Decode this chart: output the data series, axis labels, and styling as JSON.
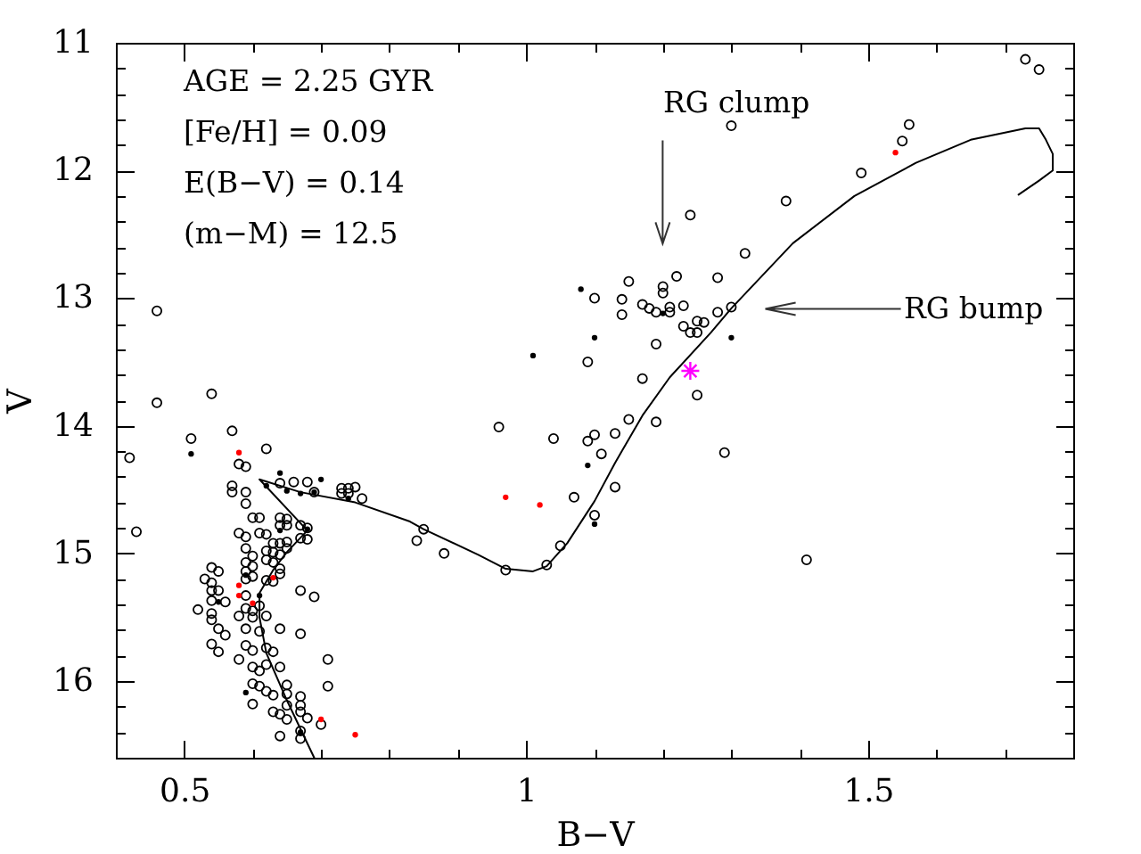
{
  "chart_data": {
    "type": "scatter",
    "xlabel": "B−V",
    "ylabel": "V",
    "xlim": [
      0.4,
      1.8
    ],
    "ylim": [
      16.6,
      11
    ],
    "xticks": [
      0.5,
      {
        "value": 0.6,
        "label": null
      },
      {
        "value": 0.7,
        "label": null
      },
      {
        "value": 0.8,
        "label": null
      },
      {
        "value": 0.9,
        "label": null
      },
      1,
      {
        "value": 1.1,
        "label": null
      },
      {
        "value": 1.2,
        "label": null
      },
      {
        "value": 1.3,
        "label": null
      },
      {
        "value": 1.4,
        "label": null
      },
      1.5,
      {
        "value": 1.6,
        "label": null
      },
      {
        "value": 1.7,
        "label": null
      }
    ],
    "yticks": [
      11,
      {
        "value": 11.2,
        "label": null
      },
      {
        "value": 11.4,
        "label": null
      },
      {
        "value": 11.6,
        "label": null
      },
      {
        "value": 11.8,
        "label": null
      },
      12,
      {
        "value": 12.2,
        "label": null
      },
      {
        "value": 12.4,
        "label": null
      },
      {
        "value": 12.6,
        "label": null
      },
      {
        "value": 12.8,
        "label": null
      },
      13,
      {
        "value": 13.2,
        "label": null
      },
      {
        "value": 13.4,
        "label": null
      },
      {
        "value": 13.6,
        "label": null
      },
      {
        "value": 13.8,
        "label": null
      },
      14,
      {
        "value": 14.2,
        "label": null
      },
      {
        "value": 14.4,
        "label": null
      },
      {
        "value": 14.6,
        "label": null
      },
      {
        "value": 14.8,
        "label": null
      },
      15,
      {
        "value": 15.2,
        "label": null
      },
      {
        "value": 15.4,
        "label": null
      },
      {
        "value": 15.6,
        "label": null
      },
      {
        "value": 15.8,
        "label": null
      },
      16,
      {
        "value": 16.2,
        "label": null
      },
      {
        "value": 16.4,
        "label": null
      }
    ],
    "series": [
      {
        "color": "#000000",
        "marker": "circle",
        "x": [
          0.46,
          0.46,
          0.54,
          0.42,
          0.51,
          0.57,
          0.62,
          0.58,
          0.59,
          0.43,
          0.64,
          0.66,
          0.68,
          0.69,
          0.73,
          0.74,
          0.75,
          0.73,
          0.74,
          0.76,
          0.57,
          0.57,
          0.59,
          0.59,
          0.6,
          0.61,
          0.58,
          0.59,
          0.64,
          0.65,
          0.64,
          0.65,
          0.67,
          0.68,
          0.68,
          0.61,
          0.62,
          0.63,
          0.64,
          0.62,
          0.63,
          0.65,
          0.65,
          0.67,
          0.59,
          0.6,
          0.62,
          0.63,
          0.64,
          0.54,
          0.55,
          0.53,
          0.54,
          0.59,
          0.59,
          0.59,
          0.6,
          0.6,
          0.62,
          0.63,
          0.64,
          0.64,
          0.67,
          0.69,
          0.54,
          0.55,
          0.54,
          0.56,
          0.59,
          0.59,
          0.6,
          0.52,
          0.54,
          0.54,
          0.58,
          0.6,
          0.61,
          0.62,
          0.55,
          0.56,
          0.59,
          0.61,
          0.64,
          0.67,
          0.54,
          0.55,
          0.59,
          0.6,
          0.62,
          0.63,
          0.58,
          0.6,
          0.61,
          0.62,
          0.64,
          0.71,
          0.6,
          0.61,
          0.62,
          0.63,
          0.65,
          0.65,
          0.67,
          0.67,
          0.71,
          0.6,
          0.63,
          0.64,
          0.65,
          0.65,
          0.67,
          0.64,
          0.68,
          0.7,
          0.67,
          0.67,
          1.24,
          1.32,
          1.15,
          1.2,
          1.2,
          1.22,
          1.28,
          1.1,
          1.14,
          1.14,
          1.17,
          1.18,
          1.19,
          1.21,
          1.21,
          1.23,
          1.23,
          1.24,
          1.25,
          1.25,
          1.26,
          1.28,
          1.3,
          1.19,
          1.09,
          1.17,
          1.25,
          1.15,
          1.19,
          1.29,
          0.96,
          1.04,
          1.09,
          1.1,
          1.13,
          1.11,
          1.13,
          1.07,
          1.1,
          1.05,
          1.03,
          0.97,
          0.88,
          0.84,
          0.85,
          1.73,
          1.75,
          1.3,
          1.56,
          1.55,
          1.49,
          1.38,
          1.41
        ],
        "values": [
          13.1,
          13.82,
          13.75,
          14.25,
          14.1,
          14.04,
          14.18,
          14.3,
          14.32,
          14.83,
          14.45,
          14.44,
          14.44,
          14.52,
          14.49,
          14.49,
          14.48,
          14.53,
          14.53,
          14.57,
          14.47,
          14.52,
          14.52,
          14.61,
          14.72,
          14.72,
          14.84,
          14.87,
          14.72,
          14.73,
          14.78,
          14.78,
          14.78,
          14.8,
          14.89,
          14.84,
          14.85,
          14.92,
          14.92,
          14.98,
          14.99,
          14.91,
          14.96,
          14.88,
          14.96,
          15.02,
          15.05,
          15.07,
          15.01,
          15.11,
          15.14,
          15.2,
          15.23,
          15.07,
          15.14,
          15.2,
          15.1,
          15.18,
          15.21,
          15.22,
          15.12,
          15.16,
          15.29,
          15.34,
          15.29,
          15.29,
          15.37,
          15.38,
          15.33,
          15.43,
          15.45,
          15.44,
          15.47,
          15.52,
          15.49,
          15.5,
          15.41,
          15.49,
          15.59,
          15.64,
          15.59,
          15.61,
          15.59,
          15.63,
          15.71,
          15.77,
          15.72,
          15.76,
          15.74,
          15.77,
          15.83,
          15.89,
          15.92,
          15.87,
          15.89,
          15.83,
          16.02,
          16.04,
          16.08,
          16.11,
          16.03,
          16.1,
          16.12,
          16.19,
          16.04,
          16.18,
          16.24,
          16.26,
          16.19,
          16.3,
          16.24,
          16.43,
          16.29,
          16.34,
          16.39,
          16.45,
          12.35,
          12.65,
          12.87,
          12.91,
          12.96,
          12.83,
          12.84,
          13.0,
          13.01,
          13.13,
          13.05,
          13.08,
          13.11,
          13.07,
          13.11,
          13.06,
          13.22,
          13.27,
          13.27,
          13.18,
          13.19,
          13.11,
          13.07,
          13.36,
          13.5,
          13.63,
          13.76,
          13.95,
          13.97,
          14.21,
          14.01,
          14.1,
          14.12,
          14.07,
          14.06,
          14.22,
          14.48,
          14.56,
          14.7,
          14.94,
          15.09,
          15.13,
          15.0,
          14.9,
          14.81,
          11.13,
          11.21,
          11.65,
          11.64,
          11.77,
          12.02,
          12.24,
          15.05
        ]
      },
      {
        "color": "#000000",
        "x": [
          0.51,
          0.64,
          0.62,
          0.65,
          0.67,
          0.69,
          0.7,
          0.74,
          0.64,
          0.68,
          0.59,
          0.61,
          0.55,
          0.59,
          0.67,
          1.08,
          1.1,
          1.01,
          1.3,
          1.09,
          1.1,
          1.2
        ],
        "values": [
          14.22,
          14.37,
          14.47,
          14.51,
          14.53,
          14.52,
          14.42,
          14.57,
          14.82,
          14.81,
          15.17,
          15.33,
          15.38,
          16.09,
          16.4,
          12.93,
          13.31,
          13.45,
          13.31,
          14.31,
          14.77,
          13.12
        ]
      },
      {
        "color": "#ff0000",
        "x": [
          0.58,
          0.58,
          0.58,
          0.6,
          0.63,
          0.7,
          0.75,
          0.97,
          1.02,
          1.54
        ],
        "values": [
          14.21,
          15.25,
          15.33,
          15.39,
          15.19,
          16.3,
          16.42,
          14.56,
          14.62,
          11.86
        ]
      },
      {
        "color": "#ff00ff",
        "marker": "cross",
        "x": [
          1.24
        ],
        "values": [
          13.57
        ]
      },
      {
        "type": "line",
        "color": "#000000",
        "marker": "none",
        "x": [
          0.69,
          0.65,
          0.62,
          0.61,
          0.61,
          0.63,
          0.65,
          0.68,
          0.61,
          0.67,
          0.75,
          0.83,
          0.85,
          0.93,
          0.97,
          1.01,
          1.03,
          1.06,
          1.1,
          1.13,
          1.17,
          1.21,
          1.27,
          1.3,
          1.39,
          1.48,
          1.57,
          1.65,
          1.73,
          1.75,
          1.76,
          1.77,
          1.77,
          1.75,
          1.72
        ],
        "values": [
          16.6,
          16.15,
          15.78,
          15.5,
          15.31,
          15.13,
          14.99,
          14.82,
          14.42,
          14.52,
          14.6,
          14.75,
          14.81,
          15.01,
          15.12,
          15.14,
          15.1,
          14.92,
          14.59,
          14.29,
          13.92,
          13.62,
          13.27,
          13.08,
          12.57,
          12.2,
          11.94,
          11.76,
          11.67,
          11.67,
          11.76,
          11.87,
          12.0,
          12.08,
          12.19
        ]
      }
    ],
    "annotations": [
      "AGE = 2.25 GYR",
      "[Fe/H] = 0.09",
      "E(B−V) = 0.14",
      "(m−M) = 12.5",
      "RG clump",
      "RG bump"
    ]
  }
}
